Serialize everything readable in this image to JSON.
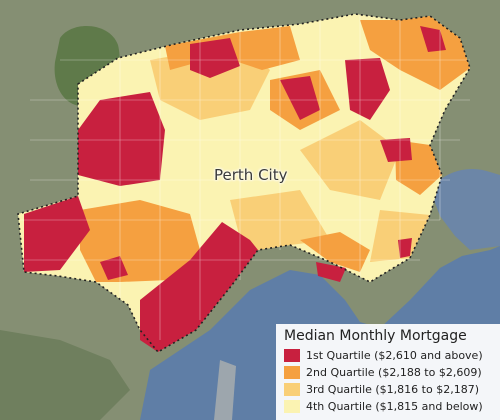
{
  "map": {
    "place_label": "Perth City",
    "basemap": "satellite imagery",
    "boundary_style": "dotted-black"
  },
  "legend": {
    "title": "Median Monthly Mortgage",
    "items": [
      {
        "label": "1st Quartile ($2,610 and above)",
        "color": "#c8203f"
      },
      {
        "label": "2nd Quartile ($2,188 to $2,609)",
        "color": "#f5a040"
      },
      {
        "label": "3rd Quartile ($1,816 to $2,187)",
        "color": "#f9cf77"
      },
      {
        "label": "4th Quartile ($1,815 and below)",
        "color": "#fbf3b2"
      }
    ]
  },
  "colors": {
    "water": "#5f7ea6",
    "land": "#8a9377",
    "park": "#5f7a4a",
    "q1": "#c8203f",
    "q2": "#f5a040",
    "q3": "#f9cf77",
    "q4": "#fbf3b2"
  }
}
